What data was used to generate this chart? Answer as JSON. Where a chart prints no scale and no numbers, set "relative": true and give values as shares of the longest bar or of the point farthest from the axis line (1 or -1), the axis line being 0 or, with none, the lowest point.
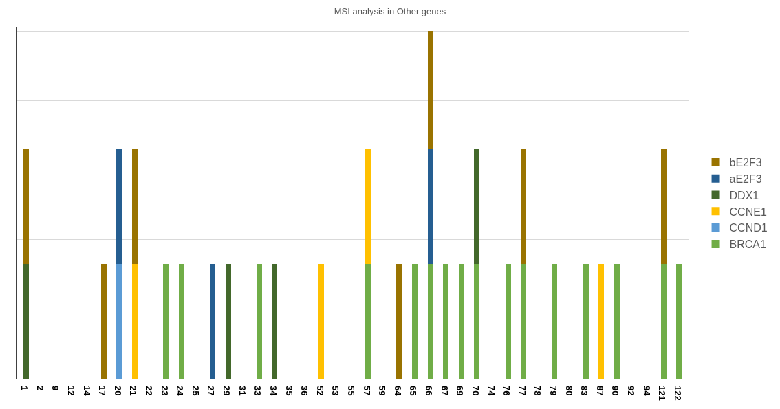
{
  "chart_data": {
    "type": "bar",
    "title": "MSI analysis in Other genes",
    "stacked": true,
    "relative": true,
    "grid": "y",
    "legend": "right",
    "categories": [
      "1",
      "2",
      "9",
      "12",
      "14",
      "17",
      "20",
      "21",
      "22",
      "23",
      "24",
      "25",
      "27",
      "29",
      "31",
      "33",
      "34",
      "35",
      "36",
      "52",
      "53",
      "55",
      "57",
      "59",
      "64",
      "65",
      "66",
      "67",
      "69",
      "70",
      "74",
      "76",
      "77",
      "78",
      "79",
      "80",
      "83",
      "87",
      "90",
      "92",
      "94",
      "121",
      "122"
    ],
    "series": [
      {
        "name": "BRCA1",
        "color": "#70ad47",
        "values": [
          null,
          null,
          null,
          null,
          null,
          null,
          null,
          null,
          null,
          0.33,
          0.33,
          null,
          null,
          null,
          null,
          0.33,
          null,
          null,
          null,
          null,
          null,
          null,
          0.33,
          null,
          null,
          0.33,
          0.33,
          0.33,
          0.33,
          0.33,
          null,
          0.33,
          0.33,
          null,
          0.33,
          null,
          0.33,
          null,
          0.33,
          null,
          null,
          0.33,
          0.33
        ]
      },
      {
        "name": "CCND1",
        "color": "#5b9bd5",
        "values": [
          null,
          null,
          null,
          null,
          null,
          null,
          0.33,
          null,
          null,
          null,
          null,
          null,
          null,
          null,
          null,
          null,
          null,
          null,
          null,
          null,
          null,
          null,
          null,
          null,
          null,
          null,
          null,
          null,
          null,
          null,
          null,
          null,
          null,
          null,
          null,
          null,
          null,
          null,
          null,
          null,
          null,
          null,
          null
        ]
      },
      {
        "name": "CCNE1",
        "color": "#ffc000",
        "values": [
          null,
          null,
          null,
          null,
          null,
          null,
          null,
          0.33,
          null,
          null,
          null,
          null,
          null,
          null,
          null,
          null,
          null,
          null,
          null,
          0.33,
          null,
          null,
          0.33,
          null,
          null,
          null,
          null,
          null,
          null,
          null,
          null,
          null,
          null,
          null,
          null,
          null,
          null,
          0.33,
          null,
          null,
          null,
          null,
          null
        ]
      },
      {
        "name": "DDX1",
        "color": "#43682b",
        "values": [
          0.33,
          null,
          null,
          null,
          null,
          null,
          null,
          null,
          null,
          null,
          null,
          null,
          null,
          0.33,
          null,
          null,
          0.33,
          null,
          null,
          null,
          null,
          null,
          null,
          null,
          null,
          null,
          null,
          null,
          null,
          0.33,
          null,
          null,
          null,
          null,
          null,
          null,
          null,
          null,
          null,
          null,
          null,
          null,
          null
        ]
      },
      {
        "name": "aE2F3",
        "color": "#255e91",
        "values": [
          null,
          null,
          null,
          null,
          null,
          null,
          0.33,
          null,
          null,
          null,
          null,
          null,
          0.33,
          null,
          null,
          null,
          null,
          null,
          null,
          null,
          null,
          null,
          null,
          null,
          null,
          null,
          0.33,
          null,
          null,
          null,
          null,
          null,
          null,
          null,
          null,
          null,
          null,
          null,
          null,
          null,
          null,
          null,
          null
        ]
      },
      {
        "name": "bE2F3",
        "color": "#997300",
        "values": [
          0.33,
          null,
          null,
          null,
          null,
          0.33,
          null,
          0.33,
          null,
          null,
          null,
          null,
          null,
          null,
          null,
          null,
          null,
          null,
          null,
          null,
          null,
          null,
          null,
          null,
          0.33,
          null,
          0.34,
          null,
          null,
          null,
          null,
          null,
          0.33,
          null,
          null,
          null,
          null,
          null,
          null,
          null,
          null,
          0.33,
          null
        ]
      }
    ]
  }
}
